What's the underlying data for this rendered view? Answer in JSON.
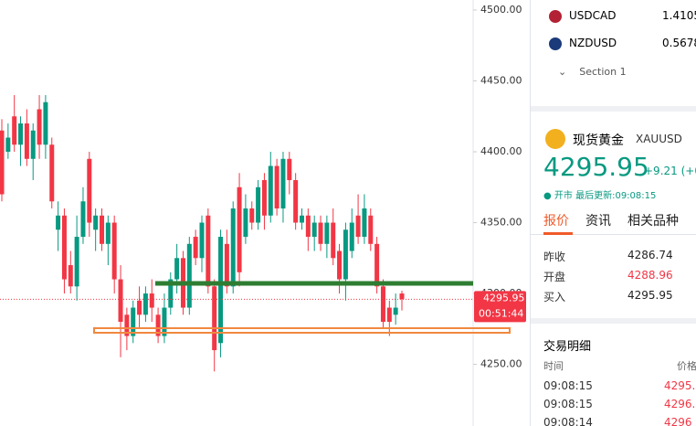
{
  "chart_data": {
    "type": "candlestick",
    "open": [
      4415,
      4400,
      4425,
      4405,
      4420,
      4395,
      4430,
      4405,
      4405,
      4345,
      4355,
      4320,
      4305,
      4340,
      4395,
      4345,
      4355,
      4335,
      4350,
      4310,
      4285,
      4270,
      4295,
      4285,
      4300,
      4285,
      4270,
      4290,
      4310,
      4325,
      4290,
      4340,
      4325,
      4355,
      4305,
      4265,
      4335,
      4305,
      4375,
      4340,
      4360,
      4350,
      4380,
      4355,
      4390,
      4360,
      4395,
      4380,
      4350,
      4355,
      4340,
      4350,
      4335,
      4350,
      4330,
      4310,
      4330,
      4355,
      4340,
      4355,
      4335,
      4305,
      4290,
      4285,
      4300
    ],
    "high": [
      4423,
      4420,
      4440,
      4425,
      4430,
      4420,
      4440,
      4440,
      4410,
      4365,
      4360,
      4330,
      4355,
      4375,
      4400,
      4360,
      4360,
      4355,
      4355,
      4320,
      4290,
      4295,
      4305,
      4305,
      4310,
      4290,
      4300,
      4315,
      4335,
      4330,
      4340,
      4345,
      4355,
      4360,
      4310,
      4345,
      4345,
      4365,
      4385,
      4370,
      4365,
      4380,
      4385,
      4400,
      4395,
      4400,
      4400,
      4385,
      4360,
      4360,
      4355,
      4355,
      4355,
      4360,
      4335,
      4350,
      4360,
      4370,
      4370,
      4360,
      4340,
      4310,
      4295,
      4300,
      4302
    ],
    "low": [
      4365,
      4395,
      4400,
      4390,
      4390,
      4380,
      4395,
      4395,
      4360,
      4330,
      4300,
      4300,
      4295,
      4335,
      4340,
      4330,
      4330,
      4320,
      4300,
      4255,
      4260,
      4265,
      4275,
      4280,
      4280,
      4265,
      4265,
      4285,
      4300,
      4285,
      4285,
      4320,
      4315,
      4300,
      4245,
      4255,
      4300,
      4300,
      4305,
      4335,
      4345,
      4345,
      4345,
      4350,
      4355,
      4350,
      4370,
      4345,
      4345,
      4330,
      4330,
      4330,
      4325,
      4320,
      4300,
      4295,
      4325,
      4335,
      4335,
      4330,
      4300,
      4275,
      4270,
      4278,
      4288
    ],
    "close": [
      4370,
      4410,
      4405,
      4420,
      4395,
      4415,
      4405,
      4435,
      4365,
      4355,
      4310,
      4305,
      4340,
      4365,
      4350,
      4355,
      4335,
      4350,
      4310,
      4280,
      4270,
      4290,
      4285,
      4300,
      4290,
      4270,
      4290,
      4310,
      4325,
      4290,
      4335,
      4325,
      4350,
      4305,
      4260,
      4340,
      4305,
      4360,
      4315,
      4360,
      4350,
      4375,
      4355,
      4390,
      4360,
      4395,
      4380,
      4350,
      4355,
      4340,
      4350,
      4335,
      4350,
      4325,
      4310,
      4345,
      4350,
      4340,
      4360,
      4335,
      4305,
      4280,
      4280,
      4290,
      4295.95
    ],
    "up_color": "#089981",
    "down_color": "#f23645",
    "ylim": [
      4206.5,
      4507.1
    ],
    "yticks": [
      {
        "value": 4500,
        "label": "4500.00"
      },
      {
        "value": 4450,
        "label": "4450.00"
      },
      {
        "value": 4400,
        "label": "4400.00"
      },
      {
        "value": 4350,
        "label": "4350.00"
      },
      {
        "value": 4300,
        "label": "4300.00"
      },
      {
        "value": 4250,
        "label": "4250.00"
      }
    ],
    "last_price": 4295.95,
    "countdown": "00:51:44"
  },
  "watchlist": [
    {
      "symbol": "USDCAD",
      "price": "1.4105"
    },
    {
      "symbol": "NZDUSD",
      "price": "0.5678"
    }
  ],
  "section": "Section 1",
  "quote": {
    "name": "现货黄金",
    "symbol": "XAUUSD",
    "price": "4295.95",
    "change": "+9.21 (+0",
    "status": "开市",
    "updated": "最后更新:09:08:15",
    "tabs": [
      "报价",
      "资讯",
      "相关品种"
    ],
    "stats": [
      [
        "昨收",
        "4286.74"
      ],
      [
        "开盘",
        "4288.96"
      ],
      [
        "买入",
        "4295.95"
      ]
    ]
  },
  "trades": {
    "title": "交易明细",
    "headers": [
      "时间",
      "价格"
    ],
    "rows": [
      [
        "09:08:15",
        "4295."
      ],
      [
        "09:08:15",
        "4296."
      ],
      [
        "09:08:14",
        "4296"
      ]
    ]
  }
}
